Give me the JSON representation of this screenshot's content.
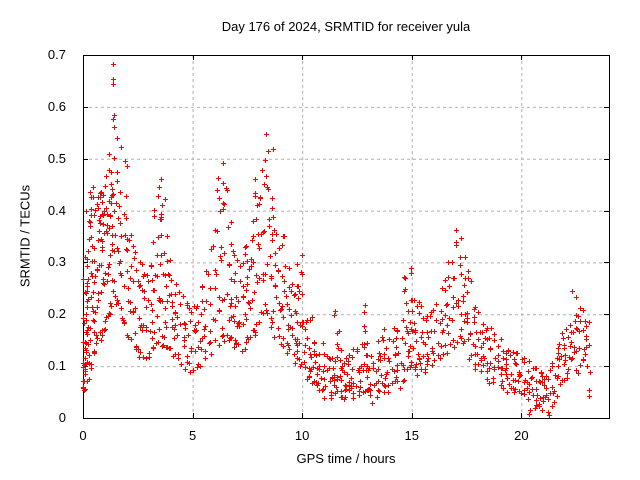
{
  "chart": {
    "title": "Day 176 of 2024, SRMTID for receiver yula",
    "x_axis_label": "GPS time / hours",
    "y_axis_label": "SRMTID / TECUs"
  },
  "chart_data": {
    "type": "scatter",
    "title": "Day 176 of 2024, SRMTID for receiver yula",
    "xlabel": "GPS time / hours",
    "ylabel": "SRMTID / TECUs",
    "xlim": [
      0,
      24
    ],
    "ylim": [
      0,
      0.7
    ],
    "x_tick_labels": [
      "0",
      "5",
      "10",
      "15",
      "20"
    ],
    "y_tick_labels": [
      "0",
      "0.1",
      "0.2",
      "0.3",
      "0.4",
      "0.5",
      "0.6",
      "0.7"
    ],
    "grid": true,
    "grid_style": "dashed",
    "grid_color": "#b0b0b0",
    "frame_color": "#000000",
    "marker": "plus-cross",
    "marker_size_px": 5,
    "marker_color": "#ff0000",
    "background": "#ffffff",
    "legend": "none",
    "series_name": "SRMTID for receiver yula, day 176 of 2024",
    "clusters_format": "[gps_hour, [srmtid_tecu_values...]] — estimated sample of the dense scatter",
    "clusters": [
      [
        0.05,
        [
          0.05,
          0.08,
          0.11,
          0.15,
          0.19,
          0.24
        ]
      ],
      [
        0.1,
        [
          0.06,
          0.09,
          0.13,
          0.17,
          0.22,
          0.27
        ]
      ],
      [
        0.15,
        [
          0.07,
          0.1,
          0.14,
          0.19,
          0.25,
          0.31
        ]
      ],
      [
        0.2,
        [
          0.08,
          0.12,
          0.17,
          0.23,
          0.3,
          0.38
        ]
      ],
      [
        0.3,
        [
          0.1,
          0.15,
          0.21,
          0.28,
          0.35,
          0.41
        ]
      ],
      [
        0.4,
        [
          0.12,
          0.17,
          0.24,
          0.31,
          0.38,
          0.43
        ]
      ],
      [
        0.5,
        [
          0.13,
          0.19,
          0.26,
          0.33,
          0.39,
          0.44
        ]
      ],
      [
        0.6,
        [
          0.14,
          0.2,
          0.28,
          0.35,
          0.41
        ]
      ],
      [
        0.7,
        [
          0.15,
          0.22,
          0.3,
          0.37,
          0.42
        ]
      ],
      [
        0.8,
        [
          0.16,
          0.24,
          0.32,
          0.38,
          0.43
        ]
      ],
      [
        0.9,
        [
          0.17,
          0.26,
          0.34,
          0.39,
          0.44
        ]
      ],
      [
        1.0,
        [
          0.18,
          0.27,
          0.35,
          0.4,
          0.45
        ]
      ],
      [
        1.1,
        [
          0.19,
          0.28,
          0.36,
          0.41,
          0.46
        ]
      ],
      [
        1.2,
        [
          0.2,
          0.29,
          0.37,
          0.43,
          0.48
        ]
      ],
      [
        1.3,
        [
          0.22,
          0.31,
          0.39,
          0.45,
          0.51,
          0.59
        ]
      ],
      [
        1.4,
        [
          0.24,
          0.33,
          0.41,
          0.48,
          0.56,
          0.645,
          0.675
        ]
      ],
      [
        1.45,
        [
          0.26,
          0.35,
          0.43,
          0.5,
          0.575,
          0.65
        ]
      ],
      [
        1.55,
        [
          0.23,
          0.32,
          0.41,
          0.475,
          0.54
        ]
      ],
      [
        1.65,
        [
          0.21,
          0.3,
          0.38,
          0.46,
          0.52
        ]
      ],
      [
        1.8,
        [
          0.19,
          0.27,
          0.35,
          0.43,
          0.49
        ]
      ],
      [
        1.95,
        [
          0.18,
          0.25,
          0.32,
          0.4,
          0.48
        ]
      ],
      [
        2.1,
        [
          0.16,
          0.22,
          0.29,
          0.35
        ]
      ],
      [
        2.25,
        [
          0.15,
          0.21,
          0.27,
          0.33
        ]
      ],
      [
        2.4,
        [
          0.14,
          0.2,
          0.26,
          0.31
        ]
      ],
      [
        2.55,
        [
          0.13,
          0.19,
          0.25,
          0.3
        ]
      ],
      [
        2.7,
        [
          0.13,
          0.18,
          0.24,
          0.29
        ]
      ],
      [
        2.85,
        [
          0.12,
          0.17,
          0.23,
          0.28
        ]
      ],
      [
        3.0,
        [
          0.12,
          0.17,
          0.22,
          0.27
        ]
      ],
      [
        3.15,
        [
          0.13,
          0.18,
          0.24,
          0.3
        ]
      ],
      [
        3.3,
        [
          0.14,
          0.2,
          0.27,
          0.34,
          0.4
        ]
      ],
      [
        3.45,
        [
          0.15,
          0.22,
          0.3,
          0.38,
          0.44
        ]
      ],
      [
        3.55,
        [
          0.16,
          0.23,
          0.31,
          0.39,
          0.46
        ]
      ],
      [
        3.7,
        [
          0.15,
          0.21,
          0.28,
          0.35,
          0.42
        ]
      ],
      [
        3.85,
        [
          0.14,
          0.19,
          0.25,
          0.31
        ]
      ],
      [
        4.0,
        [
          0.13,
          0.18,
          0.23,
          0.28
        ]
      ],
      [
        4.15,
        [
          0.12,
          0.17,
          0.21,
          0.26
        ]
      ],
      [
        4.3,
        [
          0.12,
          0.16,
          0.2,
          0.24
        ]
      ],
      [
        4.5,
        [
          0.11,
          0.15,
          0.19,
          0.23
        ]
      ],
      [
        4.7,
        [
          0.11,
          0.15,
          0.18,
          0.22
        ]
      ],
      [
        4.9,
        [
          0.1,
          0.14,
          0.18,
          0.21
        ]
      ],
      [
        5.1,
        [
          0.1,
          0.14,
          0.17,
          0.21
        ]
      ],
      [
        5.3,
        [
          0.11,
          0.15,
          0.18,
          0.22
        ]
      ],
      [
        5.5,
        [
          0.12,
          0.16,
          0.2,
          0.25
        ]
      ],
      [
        5.7,
        [
          0.13,
          0.17,
          0.22,
          0.28
        ]
      ],
      [
        5.9,
        [
          0.14,
          0.19,
          0.25,
          0.32
        ]
      ],
      [
        6.1,
        [
          0.15,
          0.21,
          0.28,
          0.36,
          0.43
        ]
      ],
      [
        6.3,
        [
          0.16,
          0.23,
          0.31,
          0.4,
          0.47,
          0.49
        ]
      ],
      [
        6.45,
        [
          0.17,
          0.24,
          0.32,
          0.41,
          0.46
        ]
      ],
      [
        6.6,
        [
          0.16,
          0.22,
          0.29,
          0.37,
          0.44
        ]
      ],
      [
        6.75,
        [
          0.15,
          0.2,
          0.26,
          0.33
        ]
      ],
      [
        6.9,
        [
          0.14,
          0.19,
          0.24,
          0.3
        ]
      ],
      [
        7.05,
        [
          0.14,
          0.18,
          0.23,
          0.28
        ]
      ],
      [
        7.2,
        [
          0.13,
          0.18,
          0.23,
          0.29
        ]
      ],
      [
        7.35,
        [
          0.14,
          0.19,
          0.25,
          0.31
        ]
      ],
      [
        7.5,
        [
          0.15,
          0.2,
          0.27,
          0.33
        ]
      ],
      [
        7.65,
        [
          0.16,
          0.22,
          0.29,
          0.35
        ]
      ],
      [
        7.8,
        [
          0.17,
          0.24,
          0.31,
          0.38,
          0.43
        ]
      ],
      [
        7.95,
        [
          0.18,
          0.26,
          0.34,
          0.41,
          0.46
        ]
      ],
      [
        8.1,
        [
          0.19,
          0.27,
          0.35,
          0.42,
          0.48
        ]
      ],
      [
        8.25,
        [
          0.2,
          0.28,
          0.36,
          0.44,
          0.5
        ]
      ],
      [
        8.4,
        [
          0.21,
          0.3,
          0.38,
          0.46,
          0.52,
          0.545
        ]
      ],
      [
        8.55,
        [
          0.2,
          0.28,
          0.35,
          0.43,
          0.515
        ]
      ],
      [
        8.7,
        [
          0.18,
          0.25,
          0.32,
          0.39
        ]
      ],
      [
        8.85,
        [
          0.17,
          0.23,
          0.29,
          0.36
        ]
      ],
      [
        9.0,
        [
          0.16,
          0.21,
          0.27,
          0.33
        ]
      ],
      [
        9.15,
        [
          0.15,
          0.2,
          0.25,
          0.35
        ]
      ],
      [
        9.3,
        [
          0.14,
          0.18,
          0.23,
          0.29
        ]
      ],
      [
        9.45,
        [
          0.13,
          0.17,
          0.21,
          0.26
        ]
      ],
      [
        9.6,
        [
          0.12,
          0.16,
          0.2,
          0.24
        ]
      ],
      [
        9.75,
        [
          0.11,
          0.15,
          0.19,
          0.23
        ]
      ],
      [
        9.9,
        [
          0.1,
          0.14,
          0.19,
          0.26,
          0.31
        ]
      ],
      [
        10.0,
        [
          0.12,
          0.18,
          0.24,
          0.28
        ]
      ],
      [
        10.2,
        [
          0.08,
          0.11,
          0.15,
          0.19
        ]
      ],
      [
        10.35,
        [
          0.07,
          0.1,
          0.13,
          0.19
        ]
      ],
      [
        10.5,
        [
          0.07,
          0.09,
          0.12,
          0.15
        ]
      ],
      [
        10.65,
        [
          0.06,
          0.08,
          0.11,
          0.14
        ]
      ],
      [
        10.8,
        [
          0.06,
          0.08,
          0.1,
          0.13
        ]
      ],
      [
        11.0,
        [
          0.05,
          0.07,
          0.1,
          0.12
        ]
      ],
      [
        11.2,
        [
          0.05,
          0.07,
          0.09,
          0.12
        ]
      ],
      [
        11.4,
        [
          0.05,
          0.07,
          0.09,
          0.11
        ]
      ],
      [
        11.55,
        [
          0.06,
          0.09,
          0.13,
          0.17,
          0.2
        ]
      ],
      [
        11.7,
        [
          0.05,
          0.07,
          0.1,
          0.13
        ]
      ],
      [
        11.85,
        [
          0.04,
          0.06,
          0.08,
          0.11
        ]
      ],
      [
        12.0,
        [
          0.04,
          0.06,
          0.08,
          0.1
        ]
      ],
      [
        12.2,
        [
          0.05,
          0.06,
          0.08,
          0.11
        ]
      ],
      [
        12.4,
        [
          0.05,
          0.07,
          0.09,
          0.12
        ]
      ],
      [
        12.6,
        [
          0.05,
          0.07,
          0.1,
          0.13
        ]
      ],
      [
        12.75,
        [
          0.06,
          0.09,
          0.13,
          0.17,
          0.21
        ]
      ],
      [
        12.9,
        [
          0.05,
          0.08,
          0.11,
          0.14
        ]
      ],
      [
        13.05,
        [
          0.05,
          0.07,
          0.09,
          0.12
        ]
      ],
      [
        13.2,
        [
          0.04,
          0.06,
          0.09,
          0.11
        ]
      ],
      [
        13.4,
        [
          0.05,
          0.07,
          0.09,
          0.12
        ]
      ],
      [
        13.6,
        [
          0.05,
          0.08,
          0.11,
          0.15,
          0.17
        ]
      ],
      [
        13.8,
        [
          0.06,
          0.08,
          0.11,
          0.14
        ]
      ],
      [
        14.0,
        [
          0.06,
          0.09,
          0.12,
          0.15
        ]
      ],
      [
        14.2,
        [
          0.07,
          0.09,
          0.12,
          0.16
        ]
      ],
      [
        14.4,
        [
          0.07,
          0.1,
          0.13,
          0.17
        ]
      ],
      [
        14.6,
        [
          0.08,
          0.11,
          0.15,
          0.19,
          0.24
        ]
      ],
      [
        14.75,
        [
          0.09,
          0.12,
          0.16,
          0.21,
          0.27
        ]
      ],
      [
        14.9,
        [
          0.1,
          0.13,
          0.17,
          0.22
        ]
      ],
      [
        15.05,
        [
          0.1,
          0.14,
          0.18,
          0.23,
          0.28
        ]
      ],
      [
        15.2,
        [
          0.1,
          0.13,
          0.17,
          0.22
        ]
      ],
      [
        15.4,
        [
          0.09,
          0.12,
          0.16,
          0.21
        ]
      ],
      [
        15.6,
        [
          0.09,
          0.12,
          0.15,
          0.19
        ]
      ],
      [
        15.8,
        [
          0.1,
          0.13,
          0.16,
          0.2
        ]
      ],
      [
        16.0,
        [
          0.1,
          0.13,
          0.17,
          0.21
        ]
      ],
      [
        16.2,
        [
          0.11,
          0.14,
          0.18,
          0.22
        ]
      ],
      [
        16.4,
        [
          0.12,
          0.16,
          0.2,
          0.25
        ]
      ],
      [
        16.6,
        [
          0.13,
          0.17,
          0.22,
          0.27
        ]
      ],
      [
        16.8,
        [
          0.14,
          0.19,
          0.24,
          0.3
        ]
      ],
      [
        17.0,
        [
          0.15,
          0.21,
          0.27,
          0.33
        ]
      ],
      [
        17.15,
        [
          0.16,
          0.22,
          0.29,
          0.355
        ]
      ],
      [
        17.3,
        [
          0.15,
          0.2,
          0.26,
          0.31
        ]
      ],
      [
        17.45,
        [
          0.14,
          0.18,
          0.23,
          0.28
        ]
      ],
      [
        17.6,
        [
          0.12,
          0.16,
          0.2,
          0.25
        ]
      ],
      [
        17.8,
        [
          0.11,
          0.14,
          0.18,
          0.22
        ]
      ],
      [
        18.0,
        [
          0.1,
          0.13,
          0.16,
          0.2
        ]
      ],
      [
        18.2,
        [
          0.09,
          0.12,
          0.15,
          0.18
        ]
      ],
      [
        18.4,
        [
          0.08,
          0.11,
          0.14,
          0.18
        ]
      ],
      [
        18.6,
        [
          0.08,
          0.1,
          0.13,
          0.16
        ]
      ],
      [
        18.8,
        [
          0.07,
          0.1,
          0.12,
          0.15
        ]
      ],
      [
        19.0,
        [
          0.07,
          0.09,
          0.12,
          0.14
        ]
      ],
      [
        19.2,
        [
          0.06,
          0.09,
          0.11,
          0.13
        ]
      ],
      [
        19.4,
        [
          0.06,
          0.08,
          0.1,
          0.13
        ]
      ],
      [
        19.6,
        [
          0.06,
          0.08,
          0.1,
          0.12
        ]
      ],
      [
        19.8,
        [
          0.05,
          0.07,
          0.09,
          0.12
        ]
      ],
      [
        20.0,
        [
          0.05,
          0.07,
          0.09,
          0.11
        ]
      ],
      [
        20.2,
        [
          0.04,
          0.06,
          0.08,
          0.11
        ]
      ],
      [
        20.4,
        [
          0.02,
          0.05,
          0.07,
          0.1
        ]
      ],
      [
        20.6,
        [
          0.02,
          0.04,
          0.06,
          0.09
        ]
      ],
      [
        20.8,
        [
          0.03,
          0.05,
          0.07,
          0.09
        ]
      ],
      [
        21.0,
        [
          0.02,
          0.04,
          0.06,
          0.08
        ]
      ],
      [
        21.2,
        [
          0.01,
          0.03,
          0.05,
          0.08
        ]
      ],
      [
        21.4,
        [
          0.03,
          0.05,
          0.08,
          0.11
        ]
      ],
      [
        21.6,
        [
          0.05,
          0.08,
          0.11,
          0.14
        ]
      ],
      [
        21.8,
        [
          0.07,
          0.1,
          0.13,
          0.16
        ]
      ],
      [
        22.0,
        [
          0.08,
          0.11,
          0.14,
          0.17
        ]
      ],
      [
        22.2,
        [
          0.09,
          0.12,
          0.15,
          0.18
        ]
      ],
      [
        22.4,
        [
          0.1,
          0.13,
          0.16,
          0.19,
          0.23
        ]
      ],
      [
        22.6,
        [
          0.1,
          0.14,
          0.17,
          0.2
        ]
      ],
      [
        22.8,
        [
          0.11,
          0.14,
          0.17,
          0.21
        ]
      ],
      [
        23.0,
        [
          0.04,
          0.1,
          0.13,
          0.16,
          0.19
        ]
      ]
    ]
  }
}
